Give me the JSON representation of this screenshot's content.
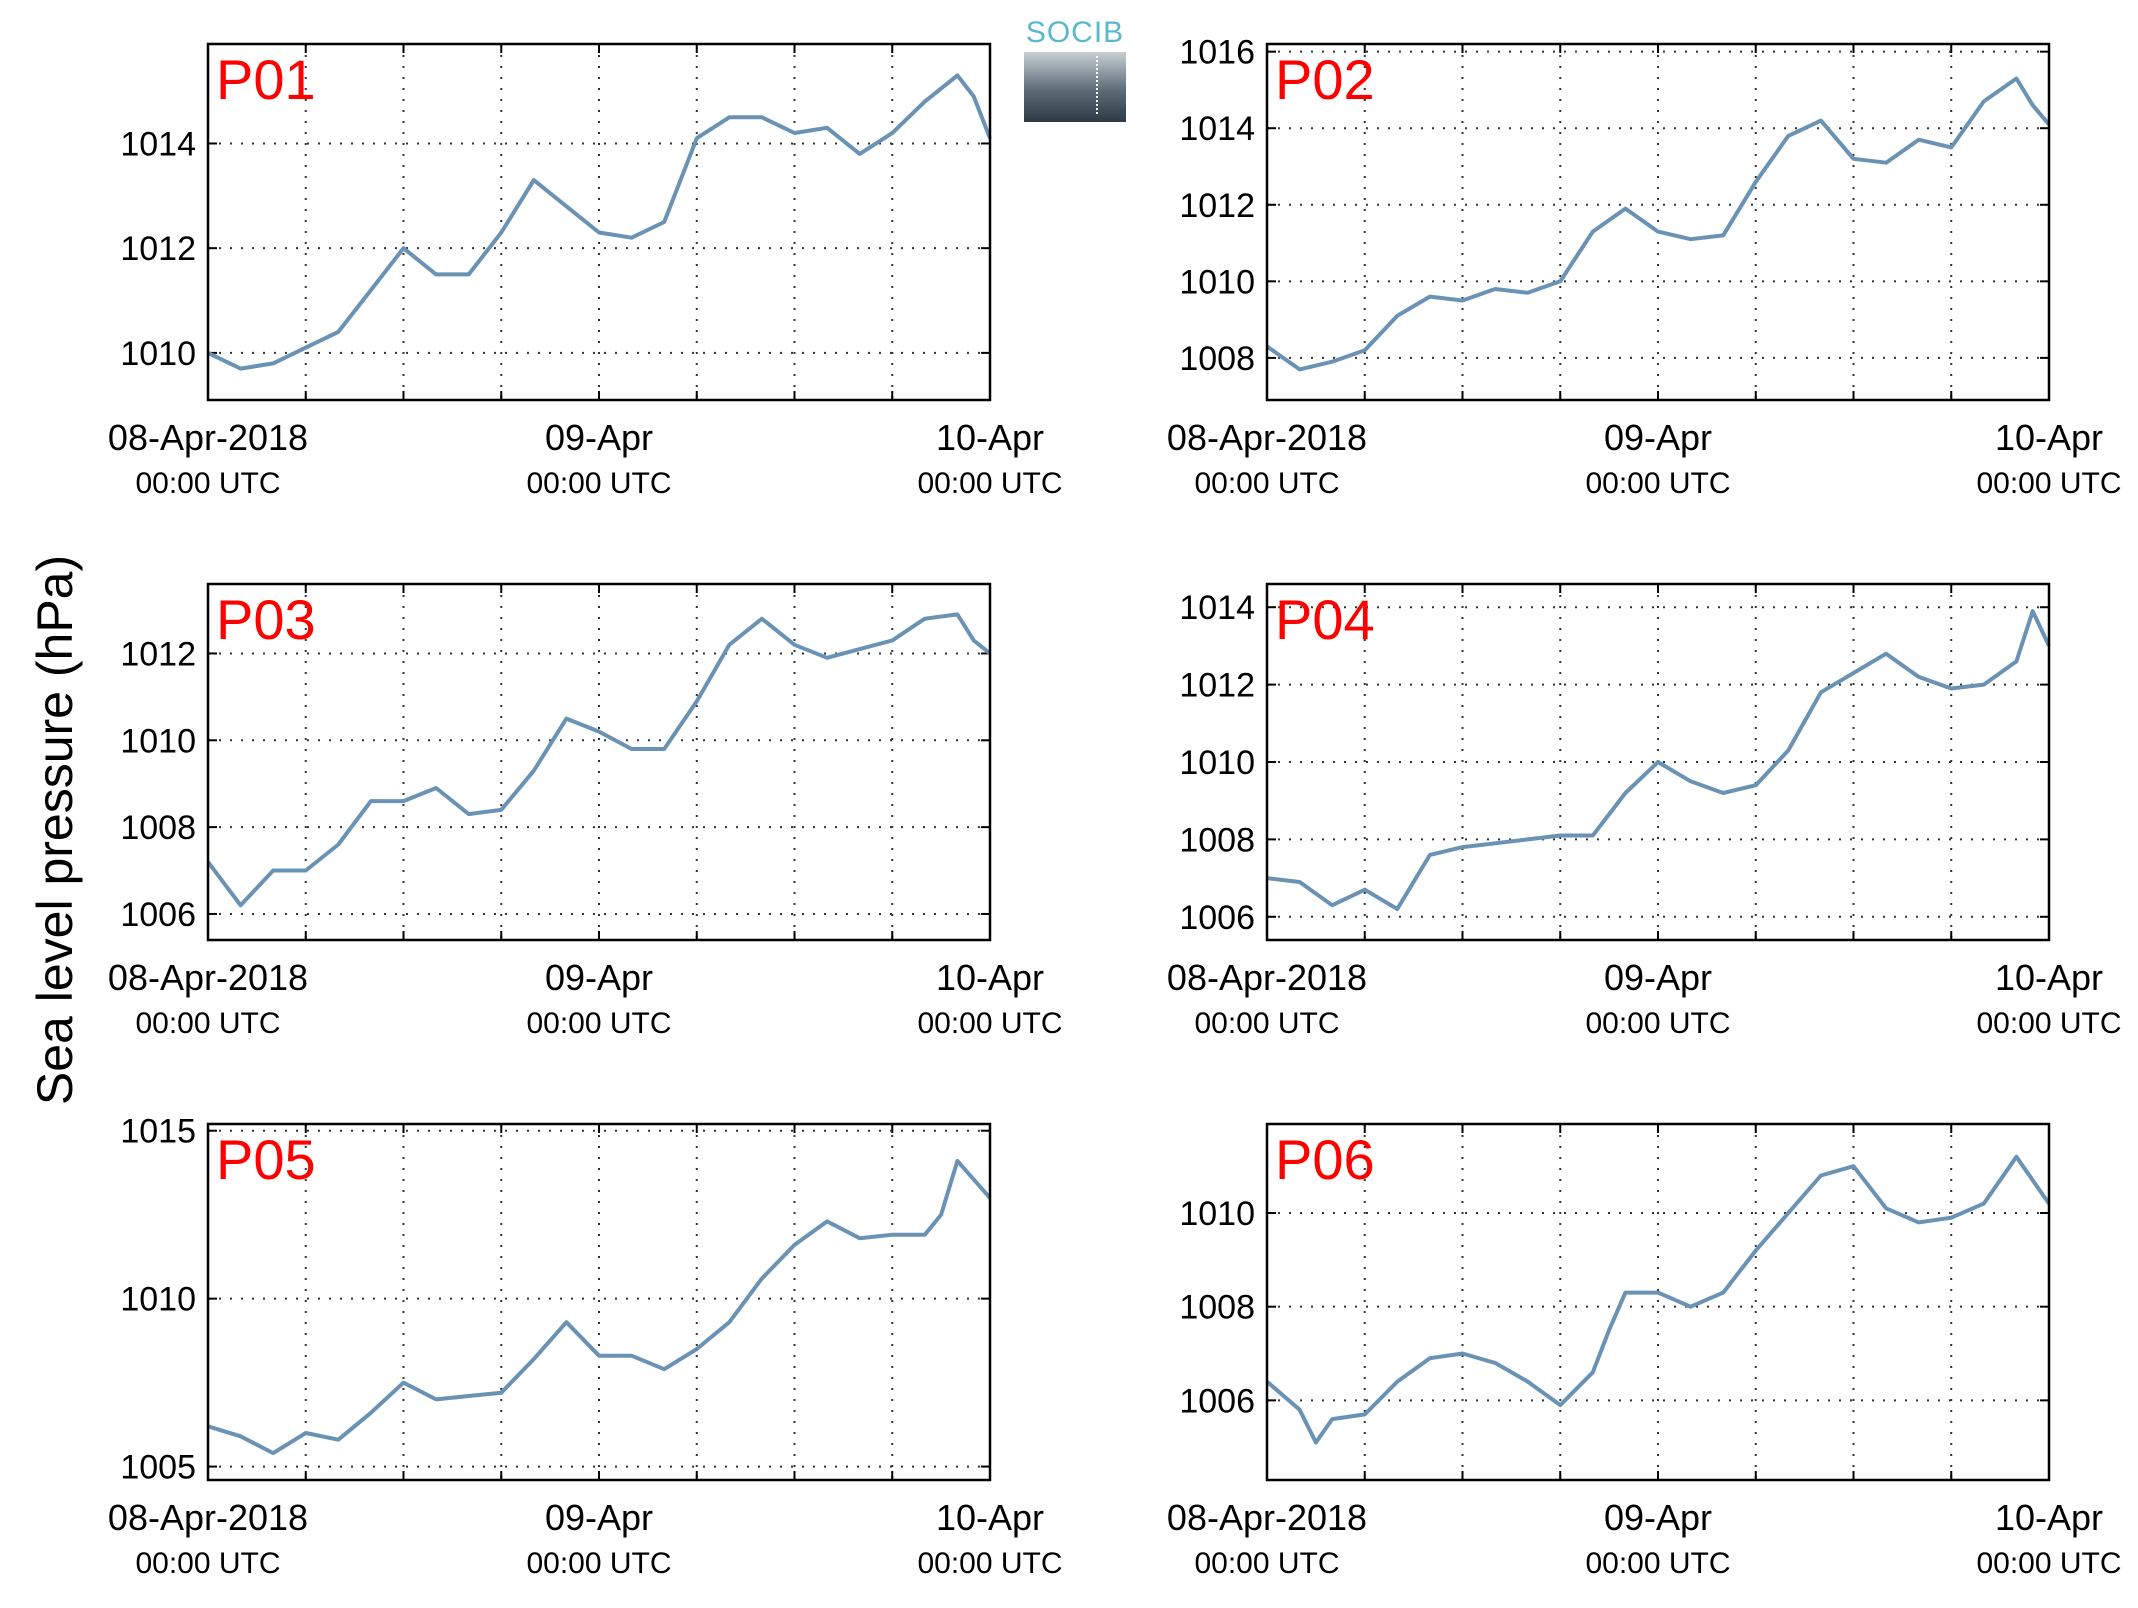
{
  "figure": {
    "ylabel": "Sea level pressure (hPa)",
    "logo_text": "SOCIB",
    "line_color": "#6a92b4",
    "label_color": "#ff0000"
  },
  "chart_data": [
    {
      "type": "line",
      "title": "P01",
      "ylim": [
        1009.1,
        1015.9
      ],
      "yticks": [
        1010,
        1012,
        1014
      ],
      "x": [
        0,
        2,
        4,
        6,
        8,
        10,
        12,
        14,
        16,
        18,
        20,
        22,
        24,
        26,
        28,
        30,
        32,
        34,
        36,
        38,
        40,
        42,
        44,
        46,
        47,
        48
      ],
      "y": [
        1010.0,
        1009.7,
        1009.8,
        1010.1,
        1010.4,
        1011.2,
        1012.0,
        1011.5,
        1011.5,
        1012.3,
        1013.3,
        1012.8,
        1012.3,
        1012.2,
        1012.5,
        1014.1,
        1014.5,
        1014.5,
        1014.2,
        1014.3,
        1013.8,
        1014.2,
        1014.8,
        1015.3,
        1014.9,
        1014.1
      ],
      "grid": true,
      "xticks": [
        {
          "label": "08-Apr-2018",
          "sub": "00:00 UTC",
          "x": 0
        },
        {
          "label": "09-Apr",
          "sub": "00:00 UTC",
          "x": 24
        },
        {
          "label": "10-Apr",
          "sub": "00:00 UTC",
          "x": 48
        }
      ]
    },
    {
      "type": "line",
      "title": "P02",
      "ylim": [
        1006.9,
        1016.2
      ],
      "yticks": [
        1008,
        1010,
        1012,
        1014,
        1016
      ],
      "x": [
        0,
        2,
        4,
        6,
        8,
        10,
        12,
        14,
        16,
        18,
        20,
        22,
        24,
        26,
        28,
        30,
        32,
        34,
        36,
        38,
        40,
        42,
        44,
        46,
        47,
        48
      ],
      "y": [
        1008.3,
        1007.7,
        1007.9,
        1008.2,
        1009.1,
        1009.6,
        1009.5,
        1009.8,
        1009.7,
        1010.0,
        1011.3,
        1011.9,
        1011.3,
        1011.1,
        1011.2,
        1012.6,
        1013.8,
        1014.2,
        1013.2,
        1013.1,
        1013.7,
        1013.5,
        1014.7,
        1015.3,
        1014.6,
        1014.1
      ],
      "grid": true,
      "xticks": [
        {
          "label": "08-Apr-2018",
          "sub": "00:00 UTC",
          "x": 0
        },
        {
          "label": "09-Apr",
          "sub": "00:00 UTC",
          "x": 24
        },
        {
          "label": "10-Apr",
          "sub": "00:00 UTC",
          "x": 48
        }
      ]
    },
    {
      "type": "line",
      "title": "P03",
      "ylim": [
        1005.4,
        1013.6
      ],
      "yticks": [
        1006,
        1008,
        1010,
        1012
      ],
      "x": [
        0,
        2,
        4,
        6,
        8,
        10,
        12,
        14,
        16,
        18,
        20,
        22,
        24,
        26,
        28,
        30,
        32,
        34,
        36,
        38,
        40,
        42,
        44,
        46,
        47,
        48
      ],
      "y": [
        1007.2,
        1006.2,
        1007.0,
        1007.0,
        1007.6,
        1008.6,
        1008.6,
        1008.9,
        1008.3,
        1008.4,
        1009.3,
        1010.5,
        1010.2,
        1009.8,
        1009.8,
        1010.9,
        1012.2,
        1012.8,
        1012.2,
        1011.9,
        1012.1,
        1012.3,
        1012.8,
        1012.9,
        1012.3,
        1012.0
      ],
      "grid": true,
      "xticks": [
        {
          "label": "08-Apr-2018",
          "sub": "00:00 UTC",
          "x": 0
        },
        {
          "label": "09-Apr",
          "sub": "00:00 UTC",
          "x": 24
        },
        {
          "label": "10-Apr",
          "sub": "00:00 UTC",
          "x": 48
        }
      ]
    },
    {
      "type": "line",
      "title": "P04",
      "ylim": [
        1005.4,
        1014.6
      ],
      "yticks": [
        1006,
        1008,
        1010,
        1012,
        1014
      ],
      "x": [
        0,
        2,
        4,
        6,
        8,
        10,
        12,
        14,
        16,
        18,
        20,
        22,
        24,
        26,
        28,
        30,
        32,
        34,
        36,
        38,
        40,
        42,
        44,
        46,
        47,
        48
      ],
      "y": [
        1007.0,
        1006.9,
        1006.3,
        1006.7,
        1006.2,
        1007.6,
        1007.8,
        1007.9,
        1008.0,
        1008.1,
        1008.1,
        1009.2,
        1010.0,
        1009.5,
        1009.2,
        1009.4,
        1010.3,
        1011.8,
        1012.3,
        1012.8,
        1012.2,
        1011.9,
        1012.0,
        1012.6,
        1013.9,
        1013.0
      ],
      "grid": true,
      "xticks": [
        {
          "label": "08-Apr-2018",
          "sub": "00:00 UTC",
          "x": 0
        },
        {
          "label": "09-Apr",
          "sub": "00:00 UTC",
          "x": 24
        },
        {
          "label": "10-Apr",
          "sub": "00:00 UTC",
          "x": 48
        }
      ]
    },
    {
      "type": "line",
      "title": "P05",
      "ylim": [
        1004.6,
        1015.2
      ],
      "yticks": [
        1005,
        1010,
        1015
      ],
      "x": [
        0,
        2,
        4,
        6,
        8,
        10,
        12,
        14,
        16,
        18,
        20,
        22,
        24,
        26,
        28,
        30,
        32,
        34,
        36,
        38,
        40,
        42,
        44,
        45,
        46,
        48
      ],
      "y": [
        1006.2,
        1005.9,
        1005.4,
        1006.0,
        1005.8,
        1006.6,
        1007.5,
        1007.0,
        1007.1,
        1007.2,
        1008.2,
        1009.3,
        1008.3,
        1008.3,
        1007.9,
        1008.5,
        1009.3,
        1010.6,
        1011.6,
        1012.3,
        1011.8,
        1011.9,
        1011.9,
        1012.5,
        1014.1,
        1013.0
      ],
      "grid": true,
      "xticks": [
        {
          "label": "08-Apr-2018",
          "sub": "00:00 UTC",
          "x": 0
        },
        {
          "label": "09-Apr",
          "sub": "00:00 UTC",
          "x": 24
        },
        {
          "label": "10-Apr",
          "sub": "00:00 UTC",
          "x": 48
        }
      ]
    },
    {
      "type": "line",
      "title": "P06",
      "ylim": [
        1004.3,
        1011.9
      ],
      "yticks": [
        1006,
        1008,
        1010
      ],
      "x": [
        0,
        2,
        3,
        4,
        6,
        8,
        10,
        12,
        14,
        16,
        18,
        20,
        21,
        22,
        24,
        26,
        28,
        30,
        32,
        34,
        36,
        38,
        40,
        42,
        44,
        46,
        48
      ],
      "y": [
        1006.4,
        1005.8,
        1005.1,
        1005.6,
        1005.7,
        1006.4,
        1006.9,
        1007.0,
        1006.8,
        1006.4,
        1005.9,
        1006.6,
        1007.5,
        1008.3,
        1008.3,
        1008.0,
        1008.3,
        1009.2,
        1010.0,
        1010.8,
        1011.0,
        1010.1,
        1009.8,
        1009.9,
        1010.2,
        1011.2,
        1010.2
      ],
      "grid": true,
      "xticks": [
        {
          "label": "08-Apr-2018",
          "sub": "00:00 UTC",
          "x": 0
        },
        {
          "label": "09-Apr",
          "sub": "00:00 UTC",
          "x": 24
        },
        {
          "label": "10-Apr",
          "sub": "00:00 UTC",
          "x": 48
        }
      ]
    }
  ]
}
